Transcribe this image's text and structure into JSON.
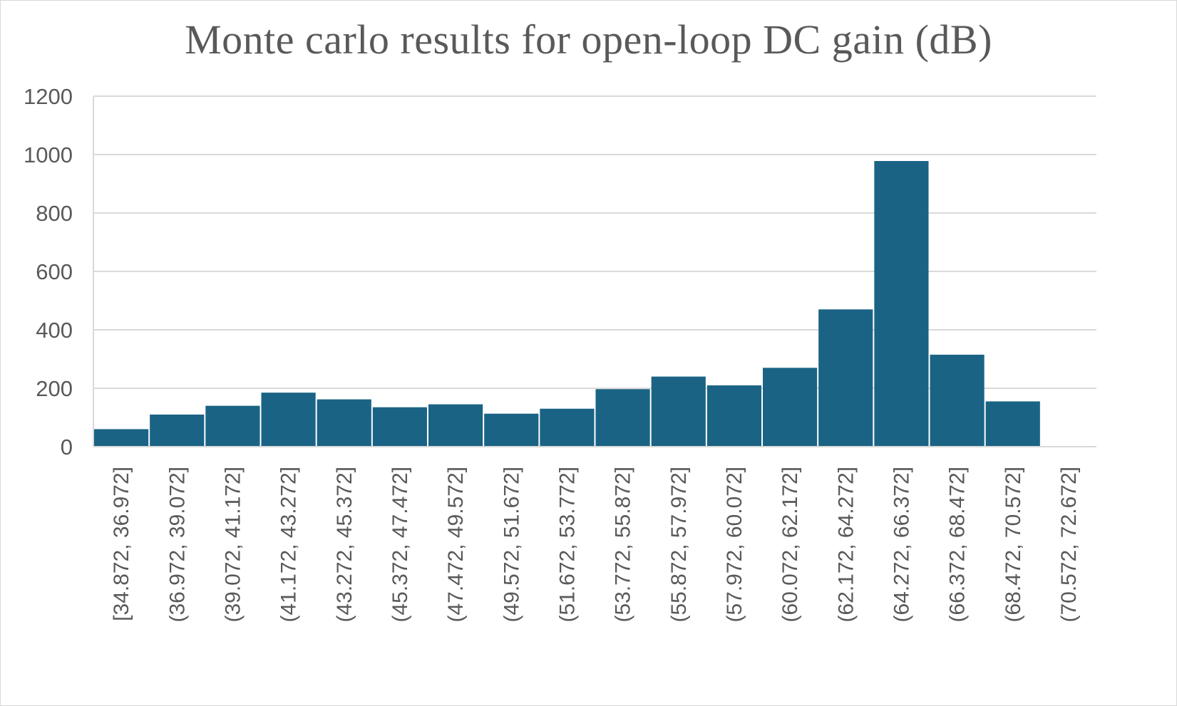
{
  "chart_data": {
    "type": "bar",
    "title": "Monte carlo results for open-loop DC gain (dB)",
    "xlabel": "",
    "ylabel": "",
    "ylim": [
      0,
      1200
    ],
    "yticks": [
      "0",
      "200",
      "400",
      "600",
      "800",
      "1000",
      "1200"
    ],
    "grid": true,
    "legend": "none",
    "bar_color": "#1a6385",
    "categories": [
      "[34.872, 36.972]",
      "(36.972, 39.072]",
      "(39.072, 41.172]",
      "(41.172, 43.272]",
      "(43.272, 45.372]",
      "(45.372, 47.472]",
      "(47.472, 49.572]",
      "(49.572, 51.672]",
      "(51.672, 53.772]",
      "(53.772, 55.872]",
      "(55.872, 57.972]",
      "(57.972, 60.072]",
      "(60.072, 62.172]",
      "(62.172, 64.272]",
      "(64.272, 66.372]",
      "(66.372, 68.472]",
      "(68.472, 70.572]",
      "(70.572, 72.672]"
    ],
    "values": [
      60,
      110,
      140,
      185,
      162,
      135,
      145,
      113,
      130,
      197,
      240,
      210,
      270,
      470,
      978,
      315,
      155,
      0
    ]
  }
}
